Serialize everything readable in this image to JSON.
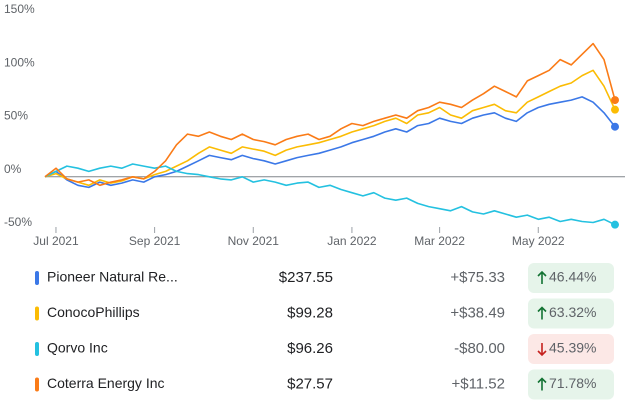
{
  "chart_data": {
    "type": "line",
    "categories": [
      null,
      "Jul 2021",
      null,
      null,
      null,
      null,
      null,
      null,
      null,
      null,
      "Sep 2021",
      null,
      null,
      null,
      null,
      null,
      null,
      null,
      null,
      "Nov 2021",
      null,
      null,
      null,
      null,
      null,
      null,
      null,
      null,
      "Jan 2022",
      null,
      null,
      null,
      null,
      null,
      null,
      null,
      "Mar 2022",
      null,
      null,
      null,
      null,
      null,
      null,
      null,
      null,
      "May 2022",
      null,
      null,
      null,
      null,
      null,
      null,
      null
    ],
    "ylim": [
      -50,
      150
    ],
    "yticks": [
      {
        "value": -50,
        "label": "-50%"
      },
      {
        "value": 0,
        "label": "0%"
      },
      {
        "value": 50,
        "label": "50%"
      },
      {
        "value": 100,
        "label": "100%"
      },
      {
        "value": 150,
        "label": "150%"
      }
    ],
    "grid": false,
    "series": [
      {
        "name": "Pioneer Natural Re...",
        "color": "#3b78e7",
        "values": [
          0,
          5,
          -3,
          -8,
          -10,
          -5,
          -8,
          -6,
          -3,
          -5,
          0,
          2,
          5,
          10,
          15,
          20,
          18,
          16,
          20,
          17,
          15,
          12,
          15,
          18,
          20,
          22,
          25,
          28,
          32,
          35,
          38,
          42,
          45,
          42,
          48,
          50,
          55,
          52,
          50,
          55,
          58,
          60,
          55,
          52,
          60,
          65,
          68,
          70,
          72,
          75,
          70,
          60,
          47
        ]
      },
      {
        "name": "ConocoPhillips",
        "color": "#fbbc04",
        "values": [
          0,
          3,
          -2,
          -5,
          -8,
          -3,
          -6,
          -4,
          0,
          -2,
          2,
          5,
          10,
          15,
          22,
          28,
          25,
          22,
          28,
          26,
          24,
          20,
          25,
          28,
          30,
          32,
          35,
          38,
          42,
          45,
          48,
          52,
          55,
          50,
          58,
          60,
          65,
          58,
          55,
          62,
          65,
          68,
          62,
          60,
          70,
          75,
          80,
          85,
          88,
          95,
          100,
          85,
          63
        ]
      },
      {
        "name": "Qorvo Inc",
        "color": "#24c1e0",
        "values": [
          0,
          5,
          10,
          8,
          5,
          8,
          10,
          8,
          12,
          10,
          8,
          10,
          5,
          3,
          2,
          0,
          -2,
          -3,
          0,
          -5,
          -3,
          -5,
          -8,
          -6,
          -5,
          -10,
          -8,
          -12,
          -15,
          -18,
          -15,
          -20,
          -22,
          -20,
          -25,
          -28,
          -30,
          -32,
          -28,
          -33,
          -35,
          -32,
          -35,
          -38,
          -36,
          -40,
          -38,
          -42,
          -40,
          -42,
          -43,
          -40,
          -45
        ]
      },
      {
        "name": "Coterra Energy Inc",
        "color": "#fa7b17",
        "values": [
          0,
          8,
          -2,
          -5,
          -3,
          -8,
          -5,
          -3,
          0,
          -2,
          5,
          15,
          30,
          40,
          38,
          42,
          38,
          35,
          40,
          35,
          33,
          30,
          35,
          38,
          40,
          35,
          38,
          45,
          50,
          48,
          52,
          55,
          58,
          55,
          62,
          65,
          70,
          68,
          65,
          72,
          78,
          85,
          80,
          75,
          90,
          95,
          100,
          110,
          105,
          115,
          125,
          110,
          72
        ]
      }
    ]
  },
  "table": {
    "rows": [
      {
        "price": "$237.55",
        "change": "+$75.33",
        "percent": "46.44%"
      },
      {
        "price": "$99.28",
        "change": "+$38.49",
        "percent": "63.32%"
      },
      {
        "price": "$96.26",
        "change": "-$80.00",
        "percent": "45.39%"
      },
      {
        "price": "$27.57",
        "change": "+$11.52",
        "percent": "71.78%"
      }
    ]
  }
}
